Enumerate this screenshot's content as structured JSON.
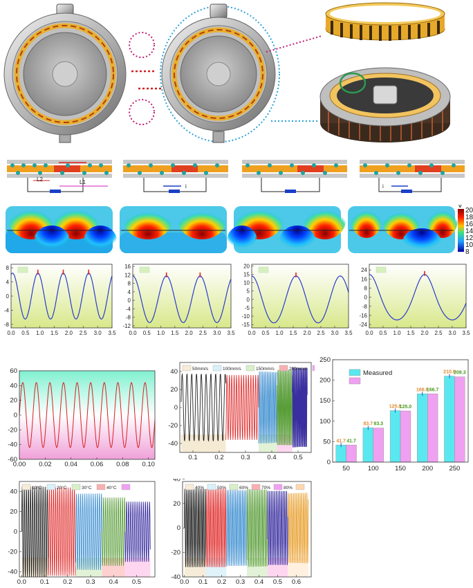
{
  "top_labels": {
    "coil_L2": "L2",
    "coil_L1": "L1",
    "current_i": "i"
  },
  "colorbar": {
    "unit": "V",
    "ticks": [
      "20",
      "18",
      "16",
      "14",
      "12",
      "10",
      "8"
    ]
  },
  "chart_data": [
    {
      "id": "sim1",
      "type": "line",
      "x": {
        "ticks": [
          "0.0",
          "0.5",
          "1.0",
          "1.5",
          "2.0",
          "2.5",
          "3.0",
          "3.5"
        ],
        "lim": [
          0,
          3.5
        ]
      },
      "y": {
        "ticks": [
          "8",
          "4",
          "0",
          "-4",
          "-8"
        ],
        "lim": [
          -9,
          9
        ]
      },
      "series": [
        {
          "kind": "cos",
          "amp": 6.5,
          "period": 0.88,
          "phase": 0.05,
          "sharp": 0
        }
      ]
    },
    {
      "id": "sim2",
      "type": "line",
      "x": {
        "ticks": [
          "0.0",
          "0.5",
          "1.0",
          "1.5",
          "2.0",
          "2.5",
          "3.0",
          "3.5"
        ],
        "lim": [
          0,
          3.5
        ]
      },
      "y": {
        "ticks": [
          "16",
          "12",
          "8",
          "4",
          "0",
          "-4",
          "-8",
          "-12"
        ],
        "lim": [
          -13,
          17
        ]
      },
      "series": [
        {
          "kind": "cos",
          "amp": 11,
          "period": 1.2,
          "phase": 0,
          "offset": 0.5,
          "sharp": 0.3
        }
      ]
    },
    {
      "id": "sim3",
      "type": "line",
      "x": {
        "ticks": [
          "0.0",
          "0.5",
          "1.0",
          "1.5",
          "2.0",
          "2.5",
          "3.0",
          "3.5"
        ],
        "lim": [
          0,
          3.5
        ]
      },
      "y": {
        "ticks": [
          "20",
          "15",
          "10",
          "5",
          "0",
          "-5",
          "-10",
          "-15"
        ],
        "lim": [
          -17,
          21
        ]
      },
      "series": [
        {
          "kind": "cos",
          "amp": 14,
          "period": 1.6,
          "phase": 0,
          "offset": 0,
          "sharp": 0.6
        }
      ]
    },
    {
      "id": "sim4",
      "type": "line",
      "x": {
        "ticks": [
          "0.0",
          "0.5",
          "1.0",
          "1.5",
          "2.0",
          "2.5",
          "3.0",
          "3.5"
        ],
        "lim": [
          0,
          3.5
        ]
      },
      "y": {
        "ticks": [
          "24",
          "16",
          "8",
          "0",
          "-8",
          "-16",
          "-24"
        ],
        "lim": [
          -27,
          29
        ]
      },
      "series": [
        {
          "kind": "cos",
          "amp": 20,
          "period": 2.0,
          "phase": 0,
          "offset": 0,
          "sharp": 1
        }
      ]
    },
    {
      "id": "meas1",
      "type": "line",
      "x": {
        "ticks": [
          "0.00",
          "0.02",
          "0.04",
          "0.06",
          "0.08",
          "0.10"
        ],
        "lim": [
          0,
          0.105
        ]
      },
      "y": {
        "ticks": [
          "60",
          "40",
          "20",
          "0",
          "-20",
          "-40",
          "-60"
        ],
        "lim": [
          -60,
          60
        ]
      },
      "series": [
        {
          "kind": "sin",
          "amp": 44,
          "freq": 95
        }
      ]
    },
    {
      "id": "meas2",
      "type": "line",
      "legend": [
        "50mm/s",
        "100mm/s",
        "150mm/s",
        "200mm/s",
        ""
      ],
      "x": {
        "ticks": [
          "0.1",
          "0.2",
          "0.3",
          "0.4",
          "0.5"
        ],
        "lim": [
          0.05,
          0.55
        ]
      },
      "y": {
        "ticks": [
          "40",
          "20",
          "0",
          "-20",
          "-40"
        ],
        "lim": [
          -50,
          50
        ]
      },
      "segments": [
        {
          "from": 0.055,
          "to": 0.225,
          "amp": 38,
          "freq": 55,
          "color": "#222222",
          "band": "#f5ead4"
        },
        {
          "from": 0.225,
          "to": 0.35,
          "amp": 36,
          "freq": 110,
          "color": "#e03030",
          "band": "#ffffff"
        },
        {
          "from": 0.35,
          "to": 0.42,
          "amp": 40,
          "freq": 165,
          "color": "#3e8fd0",
          "band": "#e2f2d6"
        },
        {
          "from": 0.42,
          "to": 0.478,
          "amp": 42,
          "freq": 220,
          "color": "#5a9e3a",
          "band": "#ffd6f0"
        },
        {
          "from": 0.478,
          "to": 0.535,
          "amp": 45,
          "freq": 270,
          "color": "#3a2fa0",
          "band": "#ffffff"
        }
      ]
    },
    {
      "id": "meas3",
      "type": "bar",
      "legend": [
        "Measured",
        ""
      ],
      "categories": [
        "50",
        "100",
        "150",
        "200",
        "250"
      ],
      "series": [
        {
          "name": "Measured",
          "values": [
            41.7,
            83.7,
            125.8,
            166.8,
            210.0
          ],
          "labels": [
            "41.7",
            "83.7",
            "125.8",
            "166.8",
            "210.0"
          ]
        },
        {
          "values": [
            41.7,
            83.3,
            125.0,
            166.7,
            208.3
          ],
          "labels": [
            "41.7",
            "83.3",
            "125.0",
            "166.7",
            "208.3"
          ]
        }
      ],
      "y": {
        "ticks": [
          "250",
          "200",
          "150",
          "100",
          "50",
          "0"
        ],
        "lim": [
          0,
          250
        ]
      }
    },
    {
      "id": "meas4",
      "type": "line",
      "legend": [
        "10°C",
        "20°C",
        "30°C",
        "40°C",
        ""
      ],
      "x": {
        "ticks": [
          "0.0",
          "0.1",
          "0.2",
          "0.3",
          "0.4",
          "0.5"
        ],
        "lim": [
          -0.01,
          0.58
        ]
      },
      "y": {
        "ticks": [
          "40",
          "20",
          "0",
          "-20",
          "-40"
        ],
        "lim": [
          -45,
          50
        ]
      },
      "segments": [
        {
          "from": 0.0,
          "to": 0.115,
          "amp": 45,
          "freq": 110,
          "color": "#222222",
          "band": "#f7ecd8"
        },
        {
          "from": 0.115,
          "to": 0.235,
          "amp": 44,
          "freq": 110,
          "color": "#e03030",
          "band": "#ffffff"
        },
        {
          "from": 0.235,
          "to": 0.35,
          "amp": 38,
          "freq": 110,
          "color": "#3e8fd0",
          "band": "#e2f2d6"
        },
        {
          "from": 0.35,
          "to": 0.45,
          "amp": 34,
          "freq": 110,
          "color": "#5a9e3a",
          "band": "#ffd0d0"
        },
        {
          "from": 0.45,
          "to": 0.56,
          "amp": 30,
          "freq": 110,
          "color": "#3a2fa0",
          "band": "#ffd6f0"
        }
      ]
    },
    {
      "id": "meas5",
      "type": "line",
      "legend": [
        "40%",
        "50%",
        "60%",
        "70%",
        "80%",
        ""
      ],
      "x": {
        "ticks": [
          "0.0",
          "0.1",
          "0.2",
          "0.3",
          "0.4",
          "0.5",
          "0.6"
        ],
        "lim": [
          -0.01,
          0.68
        ]
      },
      "y": {
        "ticks": [
          "40",
          "20",
          "0",
          "-20",
          "-40"
        ],
        "lim": [
          -40,
          38
        ]
      },
      "segments": [
        {
          "from": 0.0,
          "to": 0.115,
          "amp": 32,
          "freq": 110,
          "color": "#222222",
          "band": "#f7ecd8"
        },
        {
          "from": 0.115,
          "to": 0.225,
          "amp": 32,
          "freq": 110,
          "color": "#e03030",
          "band": "#e0f2fa"
        },
        {
          "from": 0.225,
          "to": 0.335,
          "amp": 31,
          "freq": 110,
          "color": "#3e8fd0",
          "band": "#ffffff"
        },
        {
          "from": 0.335,
          "to": 0.445,
          "amp": 32,
          "freq": 110,
          "color": "#5a9e3a",
          "band": "#e2f2d6"
        },
        {
          "from": 0.445,
          "to": 0.555,
          "amp": 31,
          "freq": 110,
          "color": "#3a2fa0",
          "band": "#ffd6f0"
        },
        {
          "from": 0.555,
          "to": 0.665,
          "amp": 29,
          "freq": 110,
          "color": "#e8a030",
          "band": "#fff0e0"
        }
      ]
    }
  ]
}
